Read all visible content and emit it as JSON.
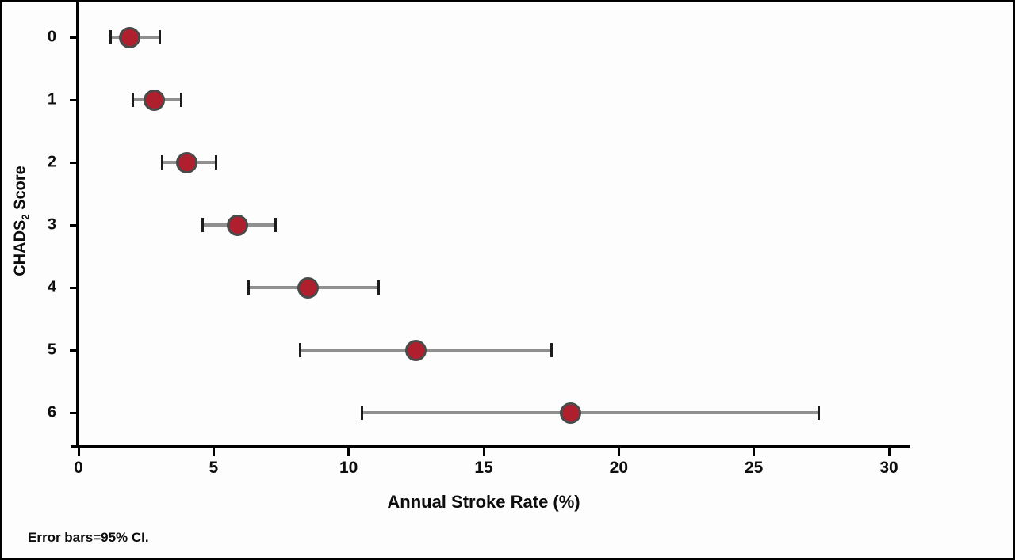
{
  "chart_data": {
    "type": "scatter",
    "subtype": "horizontal-dot-with-95ci",
    "title": "",
    "xlabel": "Annual Stroke Rate (%)",
    "ylabel": "CHADS2 Score",
    "ylabel_parts": {
      "main": "CHADS",
      "sub": "2",
      "rest": " Score"
    },
    "note": "Error bars=95% CI.",
    "xlim": [
      0,
      30
    ],
    "xticks": [
      0,
      5,
      10,
      15,
      20,
      25,
      30
    ],
    "categories": [
      "0",
      "1",
      "2",
      "3",
      "4",
      "5",
      "6"
    ],
    "points": [
      {
        "score": "0",
        "rate": 1.9,
        "ci_low": 1.2,
        "ci_high": 3.0
      },
      {
        "score": "1",
        "rate": 2.8,
        "ci_low": 2.0,
        "ci_high": 3.8
      },
      {
        "score": "2",
        "rate": 4.0,
        "ci_low": 3.1,
        "ci_high": 5.1
      },
      {
        "score": "3",
        "rate": 5.9,
        "ci_low": 4.6,
        "ci_high": 7.3
      },
      {
        "score": "4",
        "rate": 8.5,
        "ci_low": 6.3,
        "ci_high": 11.1
      },
      {
        "score": "5",
        "rate": 12.5,
        "ci_low": 8.2,
        "ci_high": 17.5
      },
      {
        "score": "6",
        "rate": 18.2,
        "ci_low": 10.5,
        "ci_high": 27.4
      }
    ],
    "legend_position": "none",
    "grid": false,
    "colors": {
      "dot_fill": "#b01f2e",
      "dot_stroke": "#4a4a4a",
      "error_line": "#8f8f8f",
      "cap_color": "#1c1c1c",
      "axis_color": "#000000",
      "text_color": "#0d0d0d",
      "background": "#fdfdfd"
    }
  }
}
